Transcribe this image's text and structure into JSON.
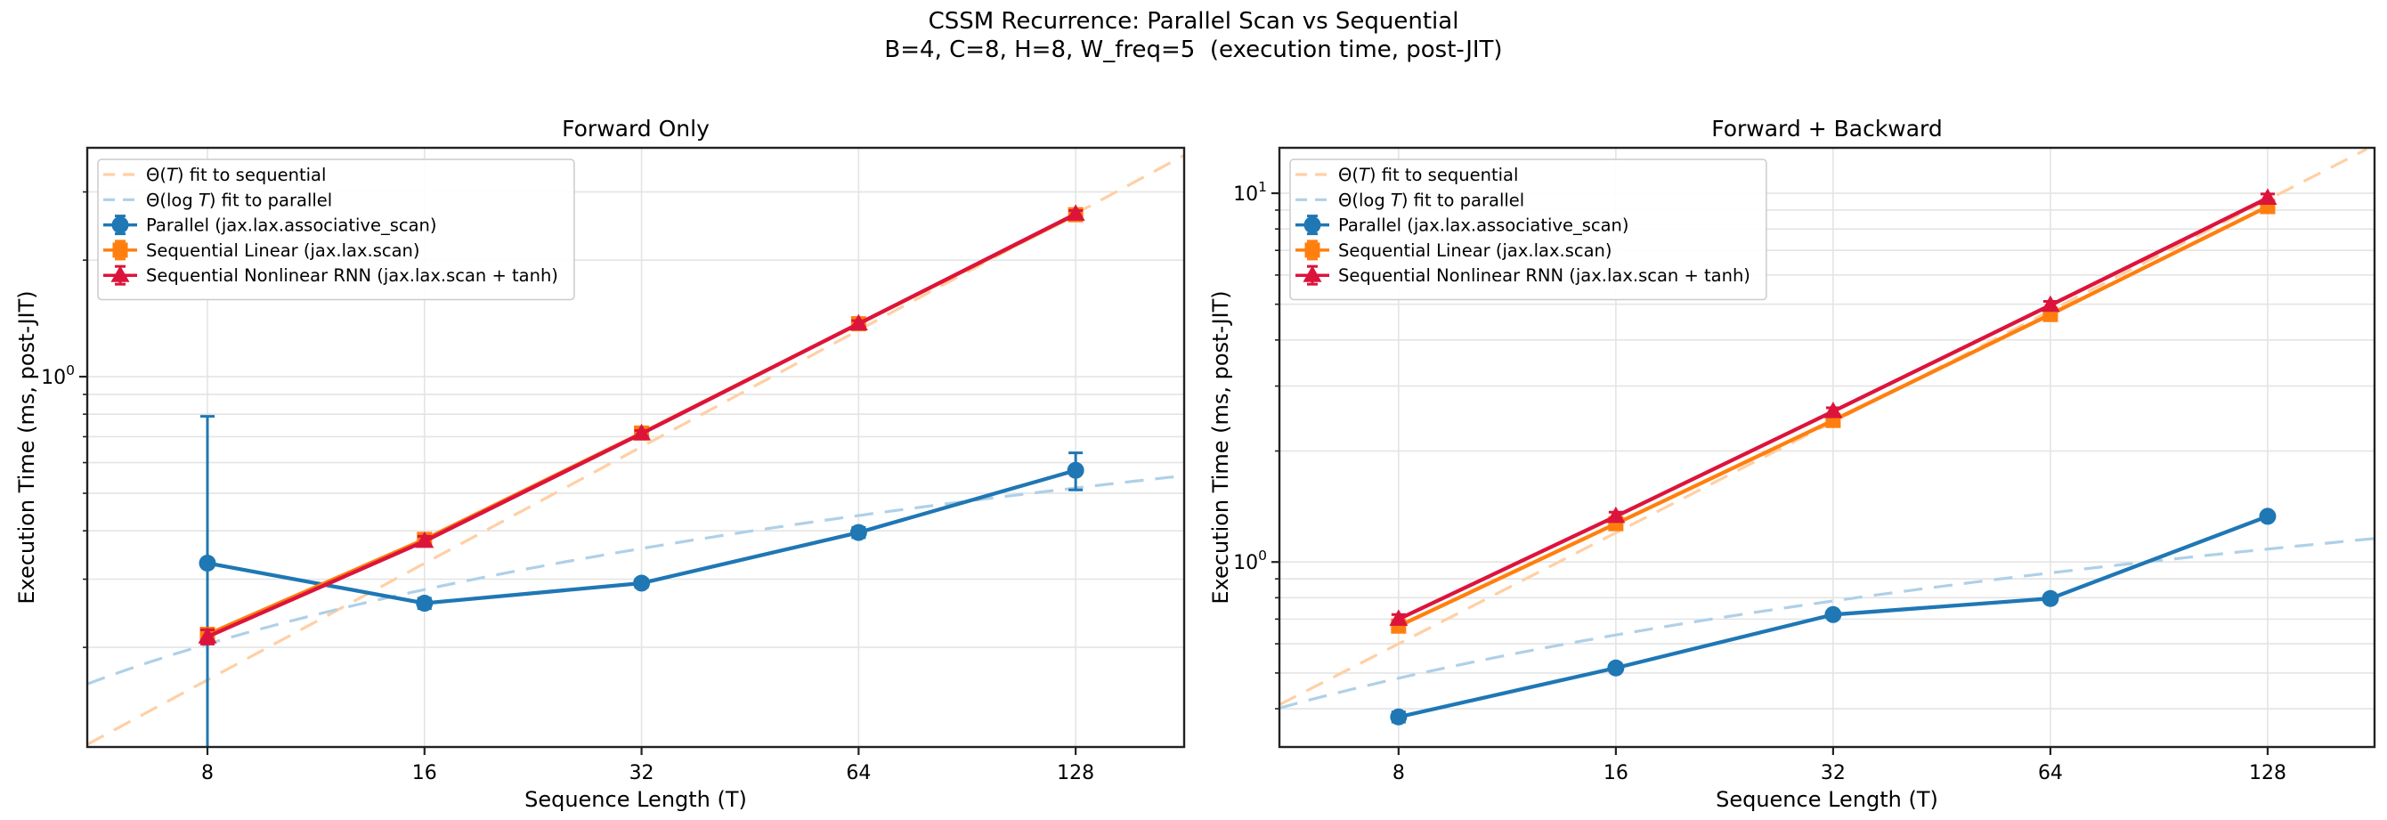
{
  "suptitle": {
    "line1": "CSSM Recurrence: Parallel Scan vs Sequential",
    "line2": "B=4, C=8, H=8, W_freq=5  (execution time, post-JIT)"
  },
  "colors": {
    "parallel": "#1f77b4",
    "seq_linear": "#ff7f0e",
    "seq_nonlinear": "#dc143c",
    "fit_sequential": "#ffcfa4",
    "fit_parallel": "#afd0e8",
    "grid": "#e4e4e4",
    "spine": "#222222",
    "legend_border": "#cccccc",
    "text": "#000000"
  },
  "chart_data": [
    {
      "id": "forward-only",
      "type": "line",
      "title": "Forward Only",
      "xlabel": "Sequence Length (T)",
      "ylabel": "Execution Time (ms, post-JIT)",
      "xscale": "log2",
      "yscale": "log10",
      "grid": "both",
      "legend_position": "upper left",
      "x": [
        8,
        16,
        32,
        64,
        128
      ],
      "xtick_labels": [
        "8",
        "16",
        "32",
        "64",
        "128"
      ],
      "xlim": [
        5.45,
        181
      ],
      "ylim": [
        0.1106,
        3.9
      ],
      "ytick_values": [
        1
      ],
      "ytick_labels": [
        "10⁰"
      ],
      "series": [
        {
          "id": "fit-sequential",
          "name": "Θ(T) fit to sequential",
          "math_label": true,
          "style": "dashed",
          "color_key": "fit_sequential",
          "fit": {
            "kind": "linear",
            "c": 0.0206
          }
        },
        {
          "id": "fit-parallel",
          "name": "Θ(log T) fit to parallel",
          "math_label": true,
          "style": "dashed",
          "color_key": "fit_parallel",
          "fit": {
            "kind": "log2",
            "alpha": -0.03,
            "beta": 0.078
          }
        },
        {
          "id": "parallel",
          "name": "Parallel (jax.lax.associative_scan)",
          "marker": "circle",
          "color_key": "parallel",
          "values": [
            0.33,
            0.26,
            0.293,
            0.396,
            0.573
          ],
          "yerr": [
            0.46,
            0.008,
            0.007,
            0.012,
            0.063
          ]
        },
        {
          "id": "seq-linear",
          "name": "Sequential Linear (jax.lax.scan)",
          "marker": "square",
          "color_key": "seq_linear",
          "values": [
            0.216,
            0.38,
            0.715,
            1.37,
            2.62
          ],
          "yerr": [
            0.008,
            0.01,
            0.012,
            0.025,
            0.05
          ]
        },
        {
          "id": "seq-nonlinear",
          "name": "Sequential Nonlinear RNN (jax.lax.scan + tanh)",
          "marker": "triangle",
          "color_key": "seq_nonlinear",
          "values": [
            0.213,
            0.376,
            0.713,
            1.37,
            2.63
          ],
          "yerr": [
            0.009,
            0.011,
            0.013,
            0.026,
            0.055
          ]
        }
      ]
    },
    {
      "id": "forward-backward",
      "type": "line",
      "title": "Forward + Backward",
      "xlabel": "Sequence Length (T)",
      "ylabel": "Execution Time (ms, post-JIT)",
      "xscale": "log2",
      "yscale": "log10",
      "grid": "both",
      "legend_position": "upper left",
      "x": [
        8,
        16,
        32,
        64,
        128
      ],
      "xtick_labels": [
        "8",
        "16",
        "32",
        "64",
        "128"
      ],
      "xlim": [
        5.47,
        180
      ],
      "ylim": [
        0.315,
        13.28
      ],
      "ytick_values": [
        10,
        1
      ],
      "ytick_labels": [
        "10¹",
        "10⁰"
      ],
      "series": [
        {
          "id": "fit-sequential",
          "name": "Θ(T) fit to sequential",
          "math_label": true,
          "style": "dashed",
          "color_key": "fit_sequential",
          "fit": {
            "kind": "linear",
            "c": 0.075
          }
        },
        {
          "id": "fit-parallel",
          "name": "Θ(log T) fit to parallel",
          "math_label": true,
          "style": "dashed",
          "color_key": "fit_parallel",
          "fit": {
            "kind": "log2",
            "alpha": 0.034,
            "beta": 0.15
          }
        },
        {
          "id": "parallel",
          "name": "Parallel (jax.lax.associative_scan)",
          "marker": "circle",
          "color_key": "parallel",
          "values": [
            0.38,
            0.516,
            0.72,
            0.796,
            1.33
          ],
          "yerr": [
            0.012,
            0.01,
            0.012,
            0.015,
            0.02
          ]
        },
        {
          "id": "seq-linear",
          "name": "Sequential Linear (jax.lax.scan)",
          "marker": "square",
          "color_key": "seq_linear",
          "values": [
            0.67,
            1.27,
            2.42,
            4.69,
            9.2
          ],
          "yerr": [
            0.02,
            0.03,
            0.05,
            0.1,
            0.2
          ]
        },
        {
          "id": "seq-nonlinear",
          "name": "Sequential Nonlinear RNN (jax.lax.scan + tanh)",
          "marker": "triangle",
          "color_key": "seq_nonlinear",
          "values": [
            0.7,
            1.33,
            2.56,
            4.97,
            9.7
          ],
          "yerr": [
            0.02,
            0.035,
            0.06,
            0.12,
            0.25
          ]
        }
      ]
    }
  ]
}
